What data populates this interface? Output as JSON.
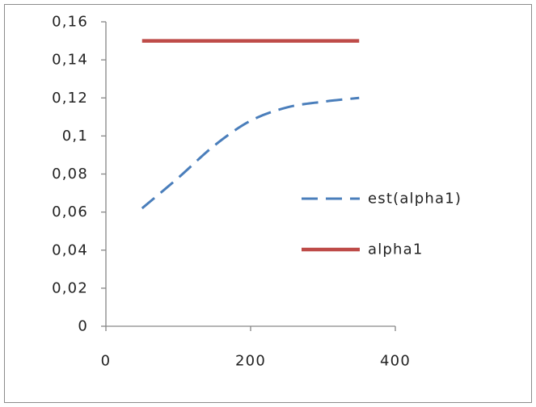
{
  "chart_data": {
    "type": "line",
    "xlim": [
      0,
      400
    ],
    "ylim": [
      0,
      0.16
    ],
    "grid": false,
    "legend": "right",
    "xticks": [
      {
        "value": 0,
        "label": "0"
      },
      {
        "value": 200,
        "label": "200"
      },
      {
        "value": 400,
        "label": "400"
      }
    ],
    "yticks": [
      {
        "value": 0,
        "label": "0"
      },
      {
        "value": 0.02,
        "label": "0,02"
      },
      {
        "value": 0.04,
        "label": "0,04"
      },
      {
        "value": 0.06,
        "label": "0,06"
      },
      {
        "value": 0.08,
        "label": "0,08"
      },
      {
        "value": 0.1,
        "label": "0,1"
      },
      {
        "value": 0.12,
        "label": "0,12"
      },
      {
        "value": 0.14,
        "label": "0,14"
      },
      {
        "value": 0.16,
        "label": "0,16"
      }
    ],
    "series": [
      {
        "name": "est(alpha1)",
        "line_style": "dashed",
        "color": "#4A7EBB",
        "x": [
          50,
          100,
          150,
          200,
          250,
          300,
          350
        ],
        "values": [
          0.062,
          0.078,
          0.095,
          0.108,
          0.115,
          0.118,
          0.12
        ]
      },
      {
        "name": "alpha1",
        "line_style": "solid",
        "color": "#BE4B48",
        "x": [
          50,
          350
        ],
        "values": [
          0.15,
          0.15
        ]
      }
    ]
  }
}
